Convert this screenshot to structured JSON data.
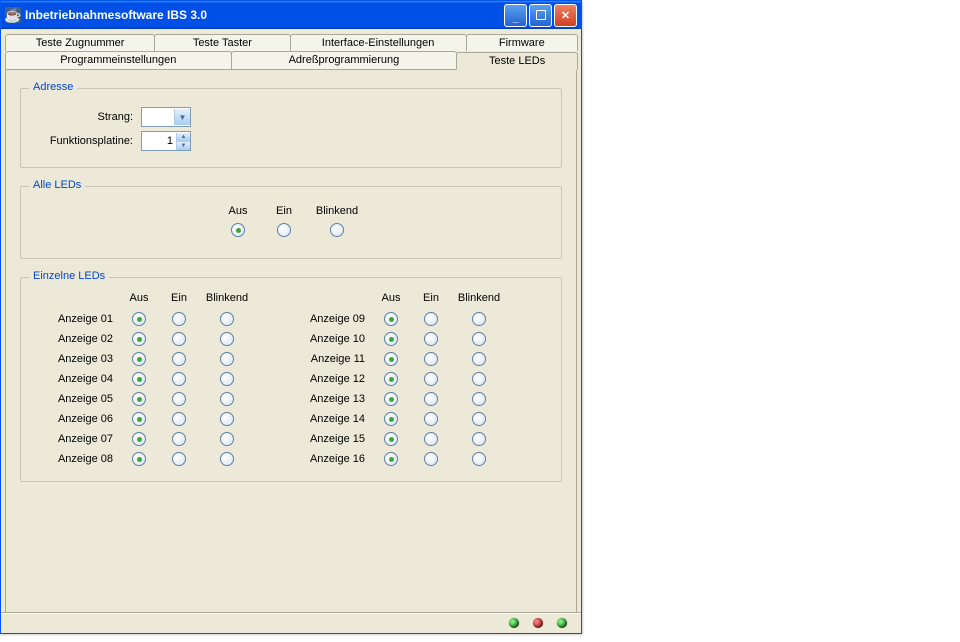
{
  "window": {
    "title": "Inbetriebnahmesoftware IBS 3.0"
  },
  "tabs_row1": [
    {
      "label": "Teste Zugnummer"
    },
    {
      "label": "Teste Taster"
    },
    {
      "label": "Interface-Einstellungen"
    },
    {
      "label": "Firmware"
    }
  ],
  "tabs_row2": [
    {
      "label": "Programmeinstellungen"
    },
    {
      "label": "Adreßprogrammierung"
    },
    {
      "label": "Teste LEDs",
      "active": true
    }
  ],
  "groups": {
    "adresse": {
      "legend": "Adresse",
      "strang_label": "Strang:",
      "strang_value": "",
      "funktionsplatine_label": "Funktionsplatine:",
      "funktionsplatine_value": "1"
    },
    "alle": {
      "legend": "Alle LEDs",
      "columns": [
        "Aus",
        "Ein",
        "Blinkend"
      ],
      "selected": 0
    },
    "einzelne": {
      "legend": "Einzelne LEDs",
      "columns": [
        "Aus",
        "Ein",
        "Blinkend"
      ],
      "left": [
        {
          "name": "Anzeige 01",
          "sel": 0
        },
        {
          "name": "Anzeige 02",
          "sel": 0
        },
        {
          "name": "Anzeige 03",
          "sel": 0
        },
        {
          "name": "Anzeige 04",
          "sel": 0
        },
        {
          "name": "Anzeige 05",
          "sel": 0
        },
        {
          "name": "Anzeige 06",
          "sel": 0
        },
        {
          "name": "Anzeige 07",
          "sel": 0
        },
        {
          "name": "Anzeige 08",
          "sel": 0
        }
      ],
      "right": [
        {
          "name": "Anzeige 09",
          "sel": 0
        },
        {
          "name": "Anzeige 10",
          "sel": 0
        },
        {
          "name": "Anzeige 11",
          "sel": 0
        },
        {
          "name": "Anzeige 12",
          "sel": 0
        },
        {
          "name": "Anzeige 13",
          "sel": 0
        },
        {
          "name": "Anzeige 14",
          "sel": 0
        },
        {
          "name": "Anzeige 15",
          "sel": 0
        },
        {
          "name": "Anzeige 16",
          "sel": 0
        }
      ]
    }
  },
  "status_leds": [
    "green",
    "red",
    "green"
  ],
  "colors": {
    "titlebar": "#0050e8",
    "panel": "#ece9d8",
    "legend_text": "#0046d5",
    "border": "#aca899"
  }
}
